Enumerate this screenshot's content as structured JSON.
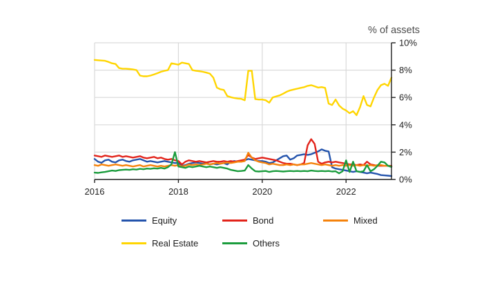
{
  "chart": {
    "y_axis_title": "% of assets"
  },
  "chart_data": {
    "type": "line",
    "title": "% of assets",
    "xlabel": "",
    "ylabel": "% of assets",
    "x_start_year": 2016,
    "x_frequency": "monthly",
    "xlim": [
      2016.0,
      2023.083
    ],
    "ylim": [
      0,
      10
    ],
    "grid": true,
    "legend_position": "bottom",
    "x_ticks": [
      {
        "value": 2016,
        "label": "2016"
      },
      {
        "value": 2018,
        "label": "2018"
      },
      {
        "value": 2020,
        "label": "2020"
      },
      {
        "value": 2022,
        "label": "2022"
      }
    ],
    "y_ticks": [
      {
        "value": 0,
        "label": "0%"
      },
      {
        "value": 2,
        "label": "2%"
      },
      {
        "value": 4,
        "label": "4%"
      },
      {
        "value": 6,
        "label": "6%"
      },
      {
        "value": 8,
        "label": "8%"
      },
      {
        "value": 10,
        "label": "10%"
      }
    ],
    "series": [
      {
        "name": "Equity",
        "color": "#2353ac",
        "values": [
          1.5,
          1.3,
          1.22,
          1.4,
          1.45,
          1.3,
          1.25,
          1.4,
          1.45,
          1.35,
          1.3,
          1.4,
          1.45,
          1.5,
          1.4,
          1.3,
          1.35,
          1.3,
          1.25,
          1.3,
          1.35,
          1.3,
          1.25,
          1.2,
          1.2,
          1.0,
          1.05,
          1.15,
          1.2,
          1.25,
          1.2,
          1.15,
          1.2,
          1.1,
          1.15,
          1.1,
          1.15,
          1.2,
          1.1,
          1.3,
          1.35,
          1.3,
          1.35,
          1.4,
          1.5,
          1.45,
          1.4,
          1.35,
          1.35,
          1.3,
          1.2,
          1.25,
          1.4,
          1.55,
          1.7,
          1.75,
          1.45,
          1.55,
          1.75,
          1.8,
          1.85,
          1.8,
          1.85,
          1.95,
          2.05,
          2.2,
          2.1,
          2.05,
          0.9,
          0.8,
          0.75,
          0.7,
          0.65,
          0.6,
          0.55,
          0.6,
          0.55,
          0.5,
          0.45,
          0.5,
          0.45,
          0.4,
          0.32,
          0.3,
          0.28,
          0.25
        ]
      },
      {
        "name": "Bond",
        "color": "#e2231a",
        "values": [
          1.75,
          1.7,
          1.65,
          1.75,
          1.7,
          1.65,
          1.7,
          1.75,
          1.65,
          1.7,
          1.65,
          1.6,
          1.65,
          1.7,
          1.6,
          1.55,
          1.6,
          1.65,
          1.55,
          1.6,
          1.5,
          1.45,
          1.5,
          1.4,
          1.35,
          1.1,
          1.3,
          1.4,
          1.35,
          1.3,
          1.35,
          1.3,
          1.25,
          1.3,
          1.35,
          1.3,
          1.3,
          1.35,
          1.3,
          1.35,
          1.3,
          1.35,
          1.4,
          1.45,
          1.8,
          1.6,
          1.5,
          1.55,
          1.6,
          1.55,
          1.5,
          1.45,
          1.4,
          1.3,
          1.2,
          1.15,
          1.15,
          1.1,
          1.05,
          1.1,
          1.2,
          2.5,
          2.95,
          2.6,
          1.3,
          1.15,
          1.25,
          1.3,
          1.25,
          1.3,
          1.25,
          1.2,
          1.15,
          1.1,
          1.1,
          1.05,
          1.1,
          1.05,
          1.3,
          1.1,
          1.05,
          1.0,
          1.0,
          1.0,
          1.0,
          1.0
        ]
      },
      {
        "name": "Mixed",
        "color": "#f5820b",
        "values": [
          1.05,
          1.0,
          1.1,
          1.05,
          1.0,
          1.05,
          1.1,
          1.05,
          1.0,
          1.05,
          1.0,
          0.95,
          1.0,
          1.05,
          0.95,
          1.0,
          1.05,
          1.0,
          0.95,
          1.0,
          0.95,
          1.0,
          1.05,
          1.0,
          1.05,
          0.95,
          1.0,
          1.1,
          1.05,
          1.1,
          1.05,
          1.1,
          1.15,
          1.1,
          1.15,
          1.2,
          1.15,
          1.2,
          1.25,
          1.2,
          1.25,
          1.3,
          1.3,
          1.35,
          1.95,
          1.6,
          1.4,
          1.3,
          1.25,
          1.2,
          1.1,
          1.15,
          1.1,
          1.05,
          1.05,
          1.1,
          1.05,
          1.1,
          1.05,
          1.1,
          1.1,
          1.15,
          1.2,
          1.15,
          1.1,
          1.05,
          1.1,
          1.05,
          1.0,
          1.05,
          1.0,
          1.05,
          1.0,
          1.05,
          1.0,
          1.05,
          1.0,
          1.05,
          1.0,
          1.05,
          1.0,
          1.05,
          1.05,
          1.0,
          1.0,
          0.95
        ]
      },
      {
        "name": "Real Estate",
        "color": "#ffd500",
        "values": [
          8.75,
          8.72,
          8.7,
          8.68,
          8.6,
          8.5,
          8.45,
          8.15,
          8.1,
          8.1,
          8.08,
          8.05,
          8.0,
          7.6,
          7.55,
          7.55,
          7.6,
          7.68,
          7.78,
          7.88,
          7.95,
          8.0,
          8.5,
          8.45,
          8.4,
          8.55,
          8.5,
          8.45,
          8.0,
          7.95,
          7.92,
          7.88,
          7.82,
          7.75,
          7.45,
          6.72,
          6.6,
          6.55,
          6.1,
          6.02,
          5.96,
          5.92,
          5.9,
          5.8,
          7.95,
          7.95,
          5.88,
          5.85,
          5.85,
          5.8,
          5.62,
          6.0,
          6.08,
          6.15,
          6.28,
          6.42,
          6.52,
          6.58,
          6.64,
          6.7,
          6.75,
          6.85,
          6.9,
          6.82,
          6.72,
          6.76,
          6.7,
          5.55,
          5.45,
          5.85,
          5.42,
          5.18,
          5.05,
          4.85,
          5.0,
          4.7,
          5.3,
          6.1,
          5.45,
          5.35,
          6.0,
          6.55,
          6.9,
          7.0,
          6.85,
          7.45
        ]
      },
      {
        "name": "Others",
        "color": "#1a9c3c",
        "values": [
          0.5,
          0.48,
          0.52,
          0.55,
          0.6,
          0.65,
          0.62,
          0.68,
          0.7,
          0.72,
          0.7,
          0.75,
          0.72,
          0.78,
          0.75,
          0.8,
          0.78,
          0.82,
          0.8,
          0.85,
          0.8,
          0.9,
          1.1,
          2.0,
          0.95,
          0.9,
          0.85,
          0.95,
          0.9,
          0.95,
          1.0,
          0.95,
          0.9,
          0.95,
          0.9,
          0.85,
          0.9,
          0.85,
          0.8,
          0.7,
          0.65,
          0.6,
          0.62,
          0.65,
          1.05,
          0.8,
          0.6,
          0.58,
          0.6,
          0.62,
          0.55,
          0.6,
          0.62,
          0.6,
          0.58,
          0.6,
          0.62,
          0.6,
          0.62,
          0.6,
          0.62,
          0.6,
          0.65,
          0.62,
          0.6,
          0.62,
          0.6,
          0.62,
          0.58,
          0.6,
          0.45,
          0.6,
          1.4,
          0.55,
          1.3,
          0.6,
          0.55,
          0.6,
          1.05,
          0.6,
          0.75,
          1.0,
          1.3,
          1.25,
          1.0,
          0.92
        ]
      }
    ],
    "style": {
      "gridline_color": "#d9d9d9",
      "axis_color": "#1f1f1f",
      "tick_label_color": "#1f1f1f",
      "axis_title_color": "#4d4d4d",
      "background": "#ffffff"
    }
  }
}
